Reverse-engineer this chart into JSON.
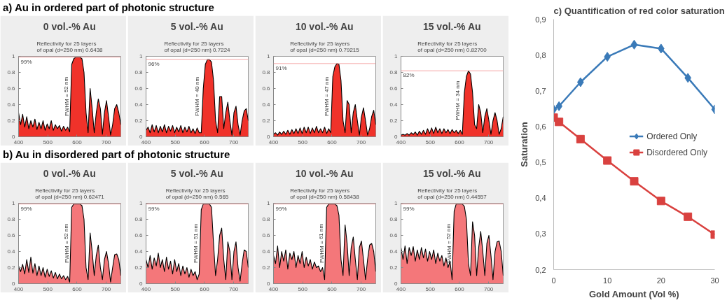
{
  "chart_data": [
    {
      "type": "area",
      "title": "0 vol.-% Au",
      "subtitle": "Reflectivity for 25 layers of opal (d=250 nm) 0.6438",
      "annotations": [
        "a) Au in ordered part of photonic structure",
        {
          "text": "FWHM = 52 nm",
          "x": 575,
          "y": 0.5
        }
      ],
      "xlim": [
        400,
        750
      ],
      "ylim": [
        0,
        1
      ],
      "xticks": [
        400,
        500,
        600,
        700
      ],
      "yticks": [
        0,
        0.2,
        0.4,
        0.6,
        0.8,
        1
      ],
      "ref_lines": [
        {
          "axis": "y",
          "value": 0.99,
          "label": "99%",
          "color": "#f4a6a6"
        }
      ],
      "x": [
        400,
        407,
        414,
        421,
        428,
        435,
        442,
        449,
        456,
        463,
        470,
        477,
        484,
        491,
        498,
        505,
        512,
        519,
        526,
        533,
        540,
        547,
        554,
        561,
        568,
        575,
        582,
        589,
        596,
        603,
        610,
        617,
        624,
        631,
        638,
        645,
        652,
        659,
        666,
        673,
        680,
        687,
        694,
        701,
        708,
        715,
        722,
        729,
        736,
        743,
        750
      ],
      "series": [
        {
          "color": "#f0322a",
          "values": [
            0.3,
            0.15,
            0.28,
            0.12,
            0.25,
            0.1,
            0.2,
            0.12,
            0.22,
            0.09,
            0.18,
            0.1,
            0.2,
            0.08,
            0.16,
            0.1,
            0.2,
            0.08,
            0.15,
            0.1,
            0.14,
            0.07,
            0.13,
            0.08,
            0.12,
            0.06,
            0.9,
            0.97,
            0.99,
            0.99,
            0.99,
            0.97,
            0.8,
            0.3,
            0.05,
            0.6,
            0.35,
            0.05,
            0.3,
            0.47,
            0.35,
            0.03,
            0.3,
            0.45,
            0.25,
            0.02,
            0.15,
            0.35,
            0.4,
            0.3,
            0.15
          ]
        }
      ]
    },
    {
      "type": "area",
      "title": "5 vol.-% Au",
      "subtitle": "Reflectivity for 25 layers of opal (d=250 nm) 0.7224",
      "annotations": [
        {
          "text": "FWHM = 40 nm",
          "x": 585,
          "y": 0.5
        }
      ],
      "xlim": [
        400,
        750
      ],
      "ylim": [
        0,
        1
      ],
      "xticks": [
        400,
        500,
        600,
        700
      ],
      "yticks": [
        0,
        0.2,
        0.4,
        0.6,
        0.8,
        1
      ],
      "ref_lines": [
        {
          "axis": "y",
          "value": 0.96,
          "label": "96%",
          "color": "#f4a6a6"
        }
      ],
      "x": [
        400,
        407,
        414,
        421,
        428,
        435,
        442,
        449,
        456,
        463,
        470,
        477,
        484,
        491,
        498,
        505,
        512,
        519,
        526,
        533,
        540,
        547,
        554,
        561,
        568,
        575,
        582,
        589,
        596,
        603,
        610,
        617,
        624,
        631,
        638,
        645,
        652,
        659,
        666,
        673,
        680,
        687,
        694,
        701,
        708,
        715,
        722,
        729,
        736,
        743,
        750
      ],
      "series": [
        {
          "color": "#f0322a",
          "values": [
            0.08,
            0.12,
            0.05,
            0.15,
            0.06,
            0.14,
            0.05,
            0.13,
            0.06,
            0.15,
            0.05,
            0.13,
            0.07,
            0.14,
            0.05,
            0.12,
            0.06,
            0.14,
            0.05,
            0.12,
            0.06,
            0.13,
            0.05,
            0.1,
            0.04,
            0.11,
            0.05,
            0.05,
            0.6,
            0.9,
            0.96,
            0.96,
            0.93,
            0.7,
            0.2,
            0.05,
            0.5,
            0.5,
            0.1,
            0.3,
            0.43,
            0.2,
            0.02,
            0.3,
            0.38,
            0.15,
            0.02,
            0.2,
            0.32,
            0.35,
            0.2
          ]
        }
      ]
    },
    {
      "type": "area",
      "title": "10 vol.-% Au",
      "subtitle": "Reflectivity for 25 layers of opal (d=250 nm) 0.79215",
      "annotations": [
        {
          "text": "FWHM = 47 nm",
          "x": 592,
          "y": 0.5
        }
      ],
      "xlim": [
        400,
        750
      ],
      "ylim": [
        0,
        1
      ],
      "xticks": [
        400,
        500,
        600,
        700
      ],
      "yticks": [
        0,
        0.2,
        0.4,
        0.6,
        0.8,
        1
      ],
      "ref_lines": [
        {
          "axis": "y",
          "value": 0.91,
          "label": "91%",
          "color": "#f4a6a6"
        }
      ],
      "x": [
        400,
        407,
        414,
        421,
        428,
        435,
        442,
        449,
        456,
        463,
        470,
        477,
        484,
        491,
        498,
        505,
        512,
        519,
        526,
        533,
        540,
        547,
        554,
        561,
        568,
        575,
        582,
        589,
        596,
        603,
        610,
        617,
        624,
        631,
        638,
        645,
        652,
        659,
        666,
        673,
        680,
        687,
        694,
        701,
        708,
        715,
        722,
        729,
        736,
        743,
        750
      ],
      "series": [
        {
          "color": "#f0322a",
          "values": [
            0.03,
            0.05,
            0.02,
            0.06,
            0.03,
            0.07,
            0.03,
            0.08,
            0.03,
            0.09,
            0.04,
            0.1,
            0.04,
            0.11,
            0.04,
            0.12,
            0.05,
            0.12,
            0.04,
            0.11,
            0.05,
            0.13,
            0.05,
            0.1,
            0.05,
            0.12,
            0.04,
            0.1,
            0.05,
            0.75,
            0.87,
            0.91,
            0.9,
            0.7,
            0.2,
            0.05,
            0.45,
            0.4,
            0.05,
            0.3,
            0.4,
            0.2,
            0.02,
            0.25,
            0.36,
            0.2,
            0.02,
            0.1,
            0.25,
            0.33,
            0.15
          ]
        }
      ]
    },
    {
      "type": "area",
      "title": "15 vol.-% Au",
      "subtitle": "Reflectivity for 25 layers of opal (d=250 nm) 0.82700",
      "annotations": [
        {
          "text": "FWHM = 34 nm",
          "x": 605,
          "y": 0.45
        }
      ],
      "xlim": [
        400,
        750
      ],
      "ylim": [
        0,
        1
      ],
      "xticks": [
        400,
        500,
        600,
        700
      ],
      "yticks": [
        0,
        0.2,
        0.4,
        0.6,
        0.8,
        1
      ],
      "ref_lines": [
        {
          "axis": "y",
          "value": 0.82,
          "label": "82%",
          "color": "#f4a6a6"
        }
      ],
      "x": [
        400,
        407,
        414,
        421,
        428,
        435,
        442,
        449,
        456,
        463,
        470,
        477,
        484,
        491,
        498,
        505,
        512,
        519,
        526,
        533,
        540,
        547,
        554,
        561,
        568,
        575,
        582,
        589,
        596,
        603,
        610,
        617,
        624,
        631,
        638,
        645,
        652,
        659,
        666,
        673,
        680,
        687,
        694,
        701,
        708,
        715,
        722,
        729,
        736,
        743,
        750
      ],
      "series": [
        {
          "color": "#f0322a",
          "values": [
            0.02,
            0.03,
            0.02,
            0.04,
            0.02,
            0.05,
            0.03,
            0.06,
            0.02,
            0.07,
            0.03,
            0.08,
            0.03,
            0.1,
            0.04,
            0.11,
            0.04,
            0.12,
            0.05,
            0.1,
            0.04,
            0.1,
            0.05,
            0.09,
            0.04,
            0.09,
            0.05,
            0.08,
            0.04,
            0.08,
            0.03,
            0.55,
            0.75,
            0.82,
            0.78,
            0.55,
            0.15,
            0.1,
            0.4,
            0.3,
            0.05,
            0.25,
            0.35,
            0.2,
            0.03,
            0.2,
            0.3,
            0.2,
            0.03,
            0.1,
            0.25
          ]
        }
      ]
    },
    {
      "type": "area",
      "title": "0 vol.-% Au",
      "subtitle": "Reflectivity for 25 layers of opal (d=250 nm) 0.62471",
      "annotations": [
        "b) Au in disordered part of photonic structure",
        {
          "text": "FWHM = 52 nm",
          "x": 575,
          "y": 0.5
        }
      ],
      "xlim": [
        400,
        750
      ],
      "ylim": [
        0,
        1
      ],
      "xticks": [
        400,
        500,
        600,
        700
      ],
      "yticks": [
        0,
        0.2,
        0.4,
        0.6,
        0.8,
        1
      ],
      "ref_lines": [
        {
          "axis": "y",
          "value": 0.99,
          "label": "99%",
          "color": "#f4a6a6"
        }
      ],
      "x": [
        400,
        407,
        414,
        421,
        428,
        435,
        442,
        449,
        456,
        463,
        470,
        477,
        484,
        491,
        498,
        505,
        512,
        519,
        526,
        533,
        540,
        547,
        554,
        561,
        568,
        575,
        582,
        589,
        596,
        603,
        610,
        617,
        624,
        631,
        638,
        645,
        652,
        659,
        666,
        673,
        680,
        687,
        694,
        701,
        708,
        715,
        722,
        729,
        736,
        743,
        750
      ],
      "series": [
        {
          "color": "#f4777a",
          "values": [
            0.22,
            0.15,
            0.24,
            0.12,
            0.3,
            0.14,
            0.33,
            0.13,
            0.25,
            0.1,
            0.22,
            0.1,
            0.2,
            0.08,
            0.18,
            0.09,
            0.16,
            0.07,
            0.14,
            0.06,
            0.12,
            0.06,
            0.1,
            0.05,
            0.09,
            0.02,
            0.95,
            0.99,
            0.99,
            0.99,
            0.99,
            0.97,
            0.8,
            0.2,
            0.05,
            0.63,
            0.4,
            0.1,
            0.35,
            0.48,
            0.2,
            0.05,
            0.3,
            0.4,
            0.25,
            0.02,
            0.2,
            0.36,
            0.37,
            0.3,
            0.1
          ]
        }
      ]
    },
    {
      "type": "area",
      "title": "5 vol.-% Au",
      "subtitle": "Reflectivity for 25 layers of opal (d=250 nm) 0.565",
      "annotations": [
        {
          "text": "FWHM = 51 nm",
          "x": 582,
          "y": 0.5
        }
      ],
      "xlim": [
        400,
        750
      ],
      "ylim": [
        0,
        1
      ],
      "xticks": [
        400,
        500,
        600,
        700
      ],
      "yticks": [
        0,
        0.2,
        0.4,
        0.6,
        0.8,
        1
      ],
      "ref_lines": [
        {
          "axis": "y",
          "value": 0.99,
          "label": "99%",
          "color": "#f4a6a6"
        }
      ],
      "x": [
        400,
        407,
        414,
        421,
        428,
        435,
        442,
        449,
        456,
        463,
        470,
        477,
        484,
        491,
        498,
        505,
        512,
        519,
        526,
        533,
        540,
        547,
        554,
        561,
        568,
        575,
        582,
        589,
        596,
        603,
        610,
        617,
        624,
        631,
        638,
        645,
        652,
        659,
        666,
        673,
        680,
        687,
        694,
        701,
        708,
        715,
        722,
        729,
        736,
        743,
        750
      ],
      "series": [
        {
          "color": "#f4777a",
          "values": [
            0.3,
            0.2,
            0.35,
            0.18,
            0.32,
            0.22,
            0.38,
            0.2,
            0.3,
            0.15,
            0.33,
            0.18,
            0.28,
            0.12,
            0.3,
            0.15,
            0.25,
            0.1,
            0.22,
            0.12,
            0.2,
            0.08,
            0.18,
            0.1,
            0.15,
            0.05,
            0.12,
            0.92,
            0.99,
            0.99,
            0.99,
            0.99,
            0.95,
            0.5,
            0.1,
            0.3,
            0.6,
            0.69,
            0.3,
            0.05,
            0.52,
            0.4,
            0.05,
            0.4,
            0.52,
            0.2,
            0.03,
            0.25,
            0.42,
            0.4,
            0.2
          ]
        }
      ]
    },
    {
      "type": "area",
      "title": "10 vol.-% Au",
      "subtitle": "Reflectivity for 25 layers of opal (d=250 nm) 0.58438",
      "annotations": [
        {
          "text": "FWHM = 61 nm",
          "x": 575,
          "y": 0.5
        }
      ],
      "xlim": [
        400,
        750
      ],
      "ylim": [
        0,
        1
      ],
      "xticks": [
        400,
        500,
        600,
        700
      ],
      "yticks": [
        0,
        0.2,
        0.4,
        0.6,
        0.8,
        1
      ],
      "ref_lines": [
        {
          "axis": "y",
          "value": 0.99,
          "label": "99%",
          "color": "#f4a6a6"
        }
      ],
      "x": [
        400,
        407,
        414,
        421,
        428,
        435,
        442,
        449,
        456,
        463,
        470,
        477,
        484,
        491,
        498,
        505,
        512,
        519,
        526,
        533,
        540,
        547,
        554,
        561,
        568,
        575,
        582,
        589,
        596,
        603,
        610,
        617,
        624,
        631,
        638,
        645,
        652,
        659,
        666,
        673,
        680,
        687,
        694,
        701,
        708,
        715,
        722,
        729,
        736,
        743,
        750
      ],
      "series": [
        {
          "color": "#f4777a",
          "values": [
            0.35,
            0.25,
            0.47,
            0.2,
            0.4,
            0.28,
            0.42,
            0.18,
            0.38,
            0.3,
            0.4,
            0.2,
            0.35,
            0.25,
            0.4,
            0.2,
            0.33,
            0.22,
            0.3,
            0.18,
            0.27,
            0.2,
            0.22,
            0.15,
            0.2,
            0.05,
            0.95,
            0.99,
            0.99,
            0.99,
            0.99,
            0.97,
            0.85,
            0.3,
            0.1,
            0.73,
            0.5,
            0.1,
            0.45,
            0.58,
            0.3,
            0.05,
            0.45,
            0.53,
            0.3,
            0.05,
            0.3,
            0.48,
            0.5,
            0.4,
            0.15
          ]
        }
      ]
    },
    {
      "type": "area",
      "title": "15 vol.-% Au",
      "subtitle": "Reflectivity for 25 layers of opal (d=250 nm) 0.44557",
      "annotations": [
        {
          "text": "FWHM = 52 nm",
          "x": 575,
          "y": 0.5
        }
      ],
      "xlim": [
        400,
        750
      ],
      "ylim": [
        0,
        1
      ],
      "xticks": [
        400,
        500,
        600,
        700
      ],
      "yticks": [
        0,
        0.2,
        0.4,
        0.6,
        0.8,
        1
      ],
      "ref_lines": [
        {
          "axis": "y",
          "value": 0.99,
          "label": "99%",
          "color": "#f4a6a6"
        }
      ],
      "x": [
        400,
        407,
        414,
        421,
        428,
        435,
        442,
        449,
        456,
        463,
        470,
        477,
        484,
        491,
        498,
        505,
        512,
        519,
        526,
        533,
        540,
        547,
        554,
        561,
        568,
        575,
        582,
        589,
        596,
        603,
        610,
        617,
        624,
        631,
        638,
        645,
        652,
        659,
        666,
        673,
        680,
        687,
        694,
        701,
        708,
        715,
        722,
        729,
        736,
        743,
        750
      ],
      "series": [
        {
          "color": "#f4777a",
          "values": [
            0.45,
            0.3,
            0.47,
            0.25,
            0.45,
            0.35,
            0.46,
            0.28,
            0.42,
            0.3,
            0.45,
            0.32,
            0.43,
            0.28,
            0.4,
            0.3,
            0.42,
            0.25,
            0.38,
            0.28,
            0.35,
            0.22,
            0.32,
            0.2,
            0.28,
            0.05,
            0.9,
            0.99,
            0.99,
            0.99,
            0.99,
            0.96,
            0.8,
            0.25,
            0.1,
            0.77,
            0.6,
            0.1,
            0.45,
            0.65,
            0.4,
            0.1,
            0.5,
            0.6,
            0.35,
            0.05,
            0.4,
            0.52,
            0.53,
            0.4,
            0.1
          ]
        }
      ]
    },
    {
      "type": "line",
      "title": "c) Quantification of red color saturation",
      "xlabel": "Gold Amount (Vol %)",
      "ylabel": "Saturation",
      "xlim": [
        0,
        30
      ],
      "xticks": [
        0,
        10,
        20,
        30
      ],
      "ylim": [
        0.2,
        0.9
      ],
      "yticks": [
        {
          "value": 0.2,
          "label": "0,2"
        },
        {
          "value": 0.3,
          "label": "0,3"
        },
        {
          "value": 0.4,
          "label": "0,4"
        },
        {
          "value": 0.5,
          "label": "0,5"
        },
        {
          "value": 0.6,
          "label": "0,6"
        },
        {
          "value": 0.7,
          "label": "0,7"
        },
        {
          "value": 0.8,
          "label": "0,8"
        },
        {
          "value": 0.9,
          "label": "0,9"
        }
      ],
      "legend": "right",
      "x": [
        0,
        1,
        5,
        10,
        15,
        20,
        25,
        30
      ],
      "series": [
        {
          "name": "Ordered Only",
          "color": "#3a7ab8",
          "marker": "diamond",
          "values": [
            0.648,
            0.657,
            0.724,
            0.795,
            0.829,
            0.818,
            0.736,
            0.648
          ]
        },
        {
          "name": "Disordered Only",
          "color": "#d9413f",
          "marker": "square",
          "values": [
            0.625,
            0.613,
            0.565,
            0.505,
            0.447,
            0.392,
            0.348,
            0.298
          ]
        }
      ]
    }
  ]
}
